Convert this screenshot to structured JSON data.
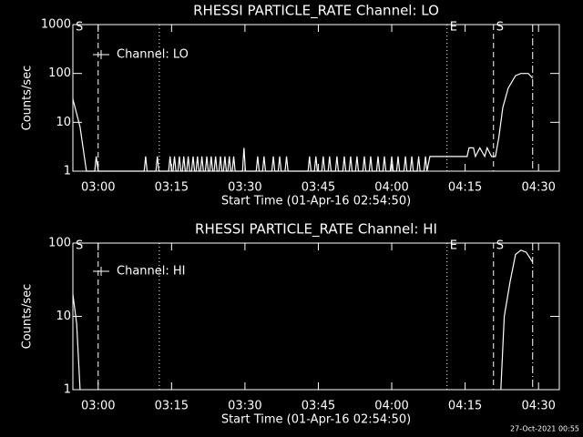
{
  "chart_data": [
    {
      "type": "line",
      "title": "RHESSI PARTICLE_RATE Channel: LO",
      "x_label": "Start Time (01-Apr-16 02:54:50)",
      "y_label": "Counts/sec",
      "log_y": true,
      "legend": "top-left",
      "xlim": [
        174.83,
        274.25
      ],
      "ylim": [
        1,
        1000
      ],
      "xticks": [
        {
          "value": 180,
          "label": "03:00"
        },
        {
          "value": 195,
          "label": "03:15"
        },
        {
          "value": 210,
          "label": "03:30"
        },
        {
          "value": 225,
          "label": "03:45"
        },
        {
          "value": 240,
          "label": "04:00"
        },
        {
          "value": 255,
          "label": "04:15"
        },
        {
          "value": 270,
          "label": "04:30"
        }
      ],
      "yticks": [
        1,
        10,
        100,
        1000
      ],
      "events": [
        {
          "x": 174.83,
          "label": "S"
        },
        {
          "x": 180,
          "style": "dashed"
        },
        {
          "x": 192.5,
          "style": "dotted"
        },
        {
          "x": 251.3,
          "label": "E",
          "style": "dotted"
        },
        {
          "x": 260.8,
          "label": "S",
          "style": "dashed"
        },
        {
          "x": 268.8,
          "style": "dashdot"
        }
      ],
      "x": [
        174.83,
        176.3,
        177.6,
        179.3,
        179.6,
        180.0,
        189.4,
        189.7,
        190.0,
        191.8,
        192.1,
        192.4,
        194.4,
        194.7,
        195.0,
        195.3,
        195.6,
        195.9,
        196.3,
        196.6,
        196.9,
        197.2,
        197.5,
        197.8,
        198.1,
        198.4,
        198.7,
        199.1,
        199.4,
        199.7,
        200.0,
        200.3,
        200.6,
        200.9,
        201.2,
        201.5,
        201.9,
        202.2,
        202.5,
        202.8,
        203.1,
        203.4,
        203.7,
        204.0,
        204.3,
        204.7,
        205.0,
        205.3,
        205.6,
        205.9,
        206.2,
        206.5,
        206.8,
        207.1,
        207.4,
        207.7,
        208.0,
        209.5,
        209.8,
        210.1,
        212.3,
        212.6,
        212.9,
        213.6,
        213.9,
        214.2,
        215.5,
        215.8,
        216.1,
        216.8,
        217.1,
        217.4,
        218.2,
        218.5,
        218.8,
        222.9,
        223.2,
        223.5,
        224.2,
        224.5,
        224.8,
        225.7,
        226.0,
        226.3,
        227.0,
        227.3,
        227.6,
        228.5,
        228.8,
        229.1,
        230.0,
        230.3,
        230.6,
        231.3,
        231.6,
        231.9,
        232.6,
        232.9,
        233.2,
        234.1,
        234.4,
        234.7,
        235.4,
        235.7,
        236.0,
        236.9,
        237.2,
        237.5,
        238.2,
        238.5,
        238.8,
        239.7,
        240.0,
        240.3,
        241.0,
        241.3,
        241.6,
        242.5,
        242.8,
        243.1,
        243.8,
        244.1,
        244.4,
        245.2,
        245.5,
        245.8,
        246.6,
        246.9,
        247.2,
        247.8,
        255.4,
        255.8,
        256.7,
        257.1,
        258.0,
        259.0,
        259.5,
        260.4,
        261.2,
        261.9,
        262.7,
        263.8,
        265.3,
        266.4,
        267.9,
        268.8
      ],
      "series": [
        {
          "name": "Channel: LO",
          "color": "#ffffff",
          "values": [
            30,
            8,
            1,
            1,
            2,
            1,
            1,
            2,
            1,
            1,
            2,
            1,
            1,
            2,
            1,
            1,
            2,
            1,
            1,
            2,
            1,
            1,
            2,
            1,
            1,
            2,
            1,
            1,
            2,
            1,
            1,
            2,
            1,
            1,
            2,
            1,
            1,
            2,
            1,
            1,
            2,
            1,
            1,
            2,
            1,
            1,
            2,
            1,
            1,
            2,
            1,
            1,
            2,
            1,
            1,
            2,
            1,
            1,
            3,
            1,
            1,
            2,
            1,
            1,
            2,
            1,
            1,
            2,
            1,
            1,
            2,
            1,
            1,
            2,
            1,
            1,
            2,
            1,
            1,
            2,
            1,
            1,
            2,
            1,
            1,
            2,
            1,
            1,
            2,
            1,
            1,
            2,
            1,
            1,
            2,
            1,
            1,
            2,
            1,
            1,
            2,
            1,
            1,
            2,
            1,
            1,
            2,
            1,
            1,
            2,
            1,
            1,
            2,
            1,
            1,
            2,
            1,
            1,
            2,
            1,
            1,
            2,
            1,
            1,
            2,
            1,
            1,
            2,
            1,
            2,
            2,
            3,
            3,
            2,
            3,
            2,
            3,
            2,
            2,
            5,
            20,
            50,
            90,
            100,
            100,
            80
          ]
        }
      ]
    },
    {
      "type": "line",
      "title": "RHESSI PARTICLE_RATE Channel: HI",
      "x_label": "Start Time (01-Apr-16 02:54:50)",
      "y_label": "Counts/sec",
      "log_y": true,
      "legend": "top-left",
      "xlim": [
        174.83,
        274.25
      ],
      "ylim": [
        1,
        100
      ],
      "xticks": [
        {
          "value": 180,
          "label": "03:00"
        },
        {
          "value": 195,
          "label": "03:15"
        },
        {
          "value": 210,
          "label": "03:30"
        },
        {
          "value": 225,
          "label": "03:45"
        },
        {
          "value": 240,
          "label": "04:00"
        },
        {
          "value": 255,
          "label": "04:15"
        },
        {
          "value": 270,
          "label": "04:30"
        }
      ],
      "yticks": [
        1,
        10,
        100
      ],
      "events": [
        {
          "x": 174.83,
          "label": "S"
        },
        {
          "x": 180,
          "style": "dashed"
        },
        {
          "x": 192.5,
          "style": "dotted"
        },
        {
          "x": 251.3,
          "label": "E",
          "style": "dotted"
        },
        {
          "x": 260.8,
          "label": "S",
          "style": "dashed"
        },
        {
          "x": 268.8,
          "style": "dashdot"
        }
      ],
      "x": [
        174.83,
        175.6,
        176.3,
        177.0,
        262.3,
        263.0,
        264.2,
        265.3,
        266.4,
        267.5,
        268.8
      ],
      "series": [
        {
          "name": "Channel: HI",
          "color": "#ffffff",
          "values": [
            20,
            8,
            1,
            null,
            1,
            10,
            30,
            70,
            80,
            75,
            55
          ]
        }
      ]
    }
  ],
  "footer": "27-Oct-2021 00:55"
}
